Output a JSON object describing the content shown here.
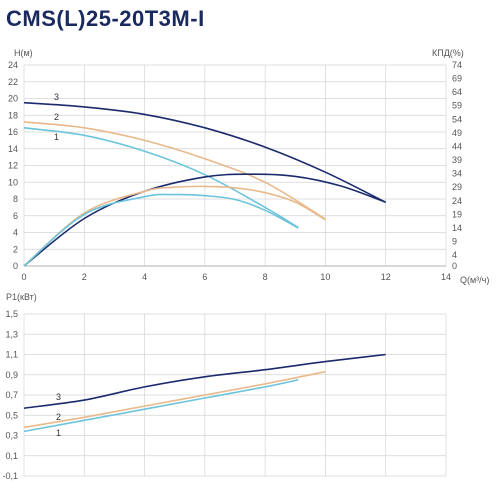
{
  "title": "CMS(L)25-20T3M-I",
  "chart_data": [
    {
      "type": "line",
      "name": "head-efficiency",
      "ylabel": "Н(м)",
      "y2label": "КПД(%)",
      "xlabel": "Q(м³/ч)",
      "xlim": [
        0,
        14
      ],
      "ylim": [
        0,
        24
      ],
      "y2lim": [
        0,
        74
      ],
      "x_ticks": [
        0,
        2,
        4,
        6,
        8,
        10,
        12,
        14
      ],
      "y_ticks": [
        0,
        2,
        4,
        6,
        8,
        10,
        12,
        14,
        16,
        18,
        20,
        22,
        24
      ],
      "y2_ticks": [
        0,
        4,
        9,
        14,
        19,
        24,
        29,
        34,
        39,
        44,
        49,
        54,
        59,
        64,
        69,
        74
      ],
      "grid": true,
      "series": [
        {
          "role": "head",
          "label": "3",
          "color": "#1a2a6c",
          "x": [
            0,
            2,
            4,
            6,
            8,
            10,
            12
          ],
          "y": [
            19.5,
            19.0,
            18.1,
            16.5,
            14.2,
            11.2,
            7.6
          ]
        },
        {
          "role": "head",
          "label": "2",
          "color": "#e8b98a",
          "x": [
            0,
            2,
            4,
            6,
            8,
            10
          ],
          "y": [
            17.2,
            16.5,
            15.0,
            12.8,
            10.0,
            5.6
          ]
        },
        {
          "role": "head",
          "label": "1",
          "color": "#6cc4dc",
          "x": [
            0,
            2,
            4,
            6,
            8,
            9.1
          ],
          "y": [
            16.5,
            15.6,
            13.7,
            10.9,
            7.0,
            4.6
          ]
        },
        {
          "role": "efficiency",
          "label": "",
          "color": "#1a2a6c",
          "x": [
            0,
            2,
            4,
            6,
            7.5,
            9,
            10.5,
            12
          ],
          "y": [
            0,
            17.5,
            27.5,
            32.8,
            33.8,
            33.0,
            29.5,
            23.5
          ]
        },
        {
          "role": "efficiency",
          "label": "",
          "color": "#e8b98a",
          "x": [
            0,
            2,
            4,
            5,
            6,
            7,
            8,
            9,
            10
          ],
          "y": [
            0,
            19.5,
            27.5,
            29.0,
            29.3,
            28.8,
            27.0,
            23.5,
            17.0
          ]
        },
        {
          "role": "efficiency",
          "label": "",
          "color": "#6cc4dc",
          "x": [
            0,
            2,
            4,
            5,
            6,
            7,
            8,
            9.1
          ],
          "y": [
            0,
            19.0,
            25.5,
            26.3,
            25.9,
            24.5,
            20.5,
            14.0
          ]
        }
      ]
    },
    {
      "type": "line",
      "name": "power",
      "ylabel": "P1(кВт)",
      "xlim": [
        0,
        14
      ],
      "ylim": [
        -0.1,
        1.5
      ],
      "y_ticks": [
        -0.1,
        0.1,
        0.3,
        0.5,
        0.7,
        0.9,
        1.1,
        1.3,
        1.5
      ],
      "y_tick_labels": [
        "-0,1",
        "0,1",
        "0,3",
        "0,5",
        "0,7",
        "0,9",
        "1,1",
        "1,3",
        "1,5"
      ],
      "grid": true,
      "series": [
        {
          "label": "3",
          "color": "#1a2a6c",
          "x": [
            0,
            2,
            4,
            6,
            8,
            10,
            12
          ],
          "y": [
            0.57,
            0.65,
            0.78,
            0.88,
            0.95,
            1.03,
            1.1
          ]
        },
        {
          "label": "2",
          "color": "#e8b98a",
          "x": [
            0,
            2,
            4,
            6,
            8,
            10
          ],
          "y": [
            0.38,
            0.48,
            0.59,
            0.7,
            0.81,
            0.93
          ]
        },
        {
          "label": "1",
          "color": "#6cc4dc",
          "x": [
            0,
            2,
            4,
            6,
            8,
            9.1
          ],
          "y": [
            0.34,
            0.45,
            0.56,
            0.67,
            0.78,
            0.85
          ]
        }
      ]
    }
  ]
}
